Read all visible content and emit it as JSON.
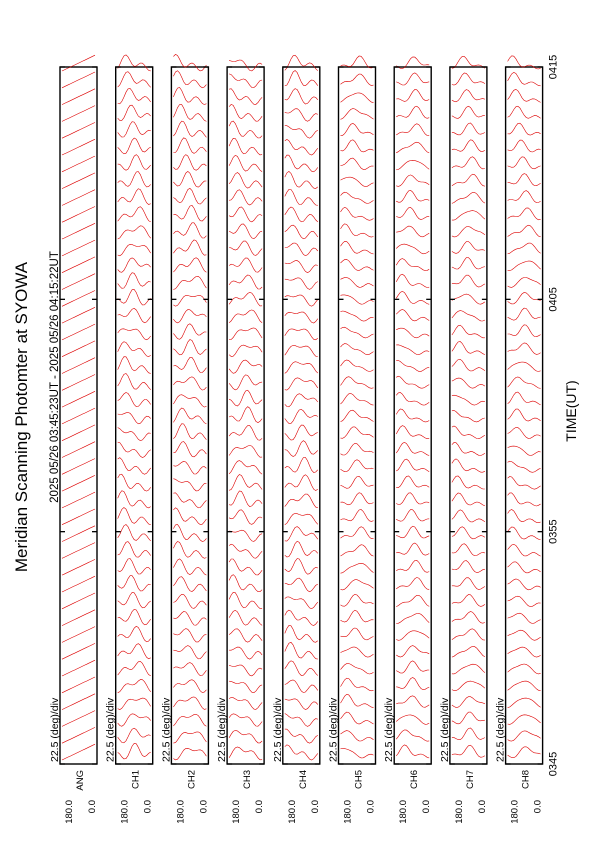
{
  "title": "Meridian Scanning Photomter at SYOWA",
  "subtitle": "2025 05/26 03:45:23UT - 2025 05/26 04:15:22UT",
  "chart_data": {
    "type": "line",
    "title": "Meridian Scanning Photomter at SYOWA",
    "subtitle": "2025 05/26 03:45:23UT - 2025 05/26 04:15:22UT",
    "xlabel": "TIME(UT)",
    "xlim": [
      "0345",
      "0415"
    ],
    "x_ticks": [
      "0345",
      "0355",
      "0405",
      "0415"
    ],
    "y_ticks": [
      "0.0",
      "180.0"
    ],
    "scale_label": "22.5 (deg)/div",
    "line_color": "#dd0000",
    "channels": [
      "ANG",
      "CH1",
      "CH2",
      "CH3",
      "CH4",
      "CH5",
      "CH6",
      "CH7",
      "CH8"
    ],
    "sweeps_per_panel": 42
  }
}
